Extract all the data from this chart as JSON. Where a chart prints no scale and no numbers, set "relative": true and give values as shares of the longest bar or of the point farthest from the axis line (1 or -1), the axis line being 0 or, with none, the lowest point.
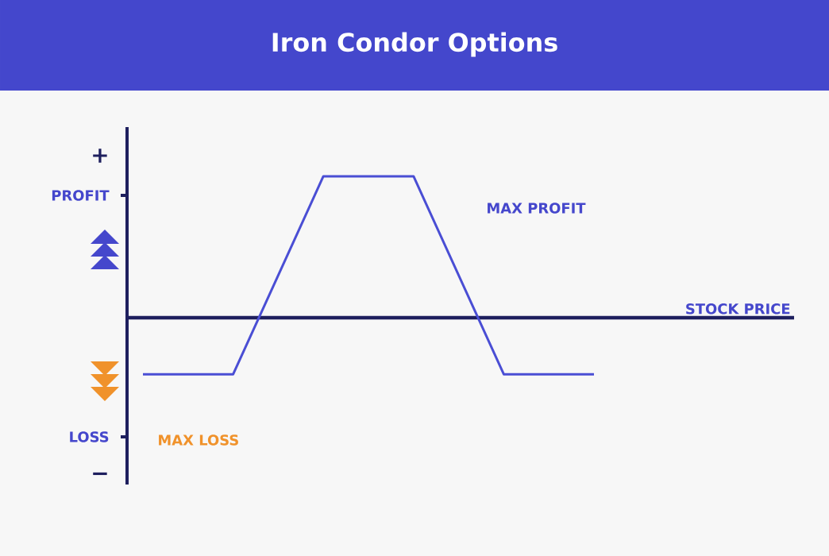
{
  "chart_data": {
    "type": "line",
    "title": "Iron Condor Options",
    "xlabel": "STOCK PRICE",
    "categories": [
      null,
      null,
      null,
      null,
      null,
      null
    ],
    "relative": true,
    "marker": "none",
    "series": [
      {
        "color": "#4a4ed4",
        "values": [
          -0.4,
          -0.4,
          1,
          1,
          -0.4,
          -0.4
        ]
      }
    ],
    "annotations": [
      "+",
      "PROFIT",
      "MAX PROFIT",
      "LOSS",
      "MAX LOSS",
      "−"
    ]
  }
}
